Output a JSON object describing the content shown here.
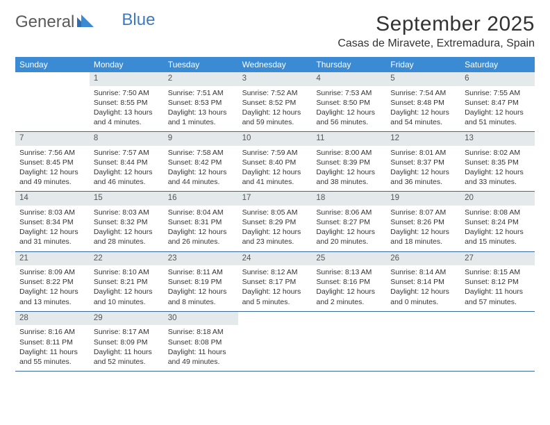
{
  "logo": {
    "text1": "General",
    "text2": "Blue"
  },
  "title": "September 2025",
  "location": "Casas de Miravete, Extremadura, Spain",
  "colors": {
    "header_bg": "#3b8bd4",
    "header_text": "#ffffff",
    "daynum_bg": "#e4e9ec",
    "week_border": "#3b6a9a",
    "logo_gray": "#5a5a5a",
    "logo_blue": "#3b7bbf"
  },
  "day_names": [
    "Sunday",
    "Monday",
    "Tuesday",
    "Wednesday",
    "Thursday",
    "Friday",
    "Saturday"
  ],
  "weeks": [
    [
      {
        "n": "",
        "empty": true
      },
      {
        "n": "1",
        "sr": "Sunrise: 7:50 AM",
        "ss": "Sunset: 8:55 PM",
        "d1": "Daylight: 13 hours",
        "d2": "and 4 minutes."
      },
      {
        "n": "2",
        "sr": "Sunrise: 7:51 AM",
        "ss": "Sunset: 8:53 PM",
        "d1": "Daylight: 13 hours",
        "d2": "and 1 minutes."
      },
      {
        "n": "3",
        "sr": "Sunrise: 7:52 AM",
        "ss": "Sunset: 8:52 PM",
        "d1": "Daylight: 12 hours",
        "d2": "and 59 minutes."
      },
      {
        "n": "4",
        "sr": "Sunrise: 7:53 AM",
        "ss": "Sunset: 8:50 PM",
        "d1": "Daylight: 12 hours",
        "d2": "and 56 minutes."
      },
      {
        "n": "5",
        "sr": "Sunrise: 7:54 AM",
        "ss": "Sunset: 8:48 PM",
        "d1": "Daylight: 12 hours",
        "d2": "and 54 minutes."
      },
      {
        "n": "6",
        "sr": "Sunrise: 7:55 AM",
        "ss": "Sunset: 8:47 PM",
        "d1": "Daylight: 12 hours",
        "d2": "and 51 minutes."
      }
    ],
    [
      {
        "n": "7",
        "sr": "Sunrise: 7:56 AM",
        "ss": "Sunset: 8:45 PM",
        "d1": "Daylight: 12 hours",
        "d2": "and 49 minutes."
      },
      {
        "n": "8",
        "sr": "Sunrise: 7:57 AM",
        "ss": "Sunset: 8:44 PM",
        "d1": "Daylight: 12 hours",
        "d2": "and 46 minutes."
      },
      {
        "n": "9",
        "sr": "Sunrise: 7:58 AM",
        "ss": "Sunset: 8:42 PM",
        "d1": "Daylight: 12 hours",
        "d2": "and 44 minutes."
      },
      {
        "n": "10",
        "sr": "Sunrise: 7:59 AM",
        "ss": "Sunset: 8:40 PM",
        "d1": "Daylight: 12 hours",
        "d2": "and 41 minutes."
      },
      {
        "n": "11",
        "sr": "Sunrise: 8:00 AM",
        "ss": "Sunset: 8:39 PM",
        "d1": "Daylight: 12 hours",
        "d2": "and 38 minutes."
      },
      {
        "n": "12",
        "sr": "Sunrise: 8:01 AM",
        "ss": "Sunset: 8:37 PM",
        "d1": "Daylight: 12 hours",
        "d2": "and 36 minutes."
      },
      {
        "n": "13",
        "sr": "Sunrise: 8:02 AM",
        "ss": "Sunset: 8:35 PM",
        "d1": "Daylight: 12 hours",
        "d2": "and 33 minutes."
      }
    ],
    [
      {
        "n": "14",
        "sr": "Sunrise: 8:03 AM",
        "ss": "Sunset: 8:34 PM",
        "d1": "Daylight: 12 hours",
        "d2": "and 31 minutes."
      },
      {
        "n": "15",
        "sr": "Sunrise: 8:03 AM",
        "ss": "Sunset: 8:32 PM",
        "d1": "Daylight: 12 hours",
        "d2": "and 28 minutes."
      },
      {
        "n": "16",
        "sr": "Sunrise: 8:04 AM",
        "ss": "Sunset: 8:31 PM",
        "d1": "Daylight: 12 hours",
        "d2": "and 26 minutes."
      },
      {
        "n": "17",
        "sr": "Sunrise: 8:05 AM",
        "ss": "Sunset: 8:29 PM",
        "d1": "Daylight: 12 hours",
        "d2": "and 23 minutes."
      },
      {
        "n": "18",
        "sr": "Sunrise: 8:06 AM",
        "ss": "Sunset: 8:27 PM",
        "d1": "Daylight: 12 hours",
        "d2": "and 20 minutes."
      },
      {
        "n": "19",
        "sr": "Sunrise: 8:07 AM",
        "ss": "Sunset: 8:26 PM",
        "d1": "Daylight: 12 hours",
        "d2": "and 18 minutes."
      },
      {
        "n": "20",
        "sr": "Sunrise: 8:08 AM",
        "ss": "Sunset: 8:24 PM",
        "d1": "Daylight: 12 hours",
        "d2": "and 15 minutes."
      }
    ],
    [
      {
        "n": "21",
        "sr": "Sunrise: 8:09 AM",
        "ss": "Sunset: 8:22 PM",
        "d1": "Daylight: 12 hours",
        "d2": "and 13 minutes."
      },
      {
        "n": "22",
        "sr": "Sunrise: 8:10 AM",
        "ss": "Sunset: 8:21 PM",
        "d1": "Daylight: 12 hours",
        "d2": "and 10 minutes."
      },
      {
        "n": "23",
        "sr": "Sunrise: 8:11 AM",
        "ss": "Sunset: 8:19 PM",
        "d1": "Daylight: 12 hours",
        "d2": "and 8 minutes."
      },
      {
        "n": "24",
        "sr": "Sunrise: 8:12 AM",
        "ss": "Sunset: 8:17 PM",
        "d1": "Daylight: 12 hours",
        "d2": "and 5 minutes."
      },
      {
        "n": "25",
        "sr": "Sunrise: 8:13 AM",
        "ss": "Sunset: 8:16 PM",
        "d1": "Daylight: 12 hours",
        "d2": "and 2 minutes."
      },
      {
        "n": "26",
        "sr": "Sunrise: 8:14 AM",
        "ss": "Sunset: 8:14 PM",
        "d1": "Daylight: 12 hours",
        "d2": "and 0 minutes."
      },
      {
        "n": "27",
        "sr": "Sunrise: 8:15 AM",
        "ss": "Sunset: 8:12 PM",
        "d1": "Daylight: 11 hours",
        "d2": "and 57 minutes."
      }
    ],
    [
      {
        "n": "28",
        "sr": "Sunrise: 8:16 AM",
        "ss": "Sunset: 8:11 PM",
        "d1": "Daylight: 11 hours",
        "d2": "and 55 minutes."
      },
      {
        "n": "29",
        "sr": "Sunrise: 8:17 AM",
        "ss": "Sunset: 8:09 PM",
        "d1": "Daylight: 11 hours",
        "d2": "and 52 minutes."
      },
      {
        "n": "30",
        "sr": "Sunrise: 8:18 AM",
        "ss": "Sunset: 8:08 PM",
        "d1": "Daylight: 11 hours",
        "d2": "and 49 minutes."
      },
      {
        "n": "",
        "empty": true
      },
      {
        "n": "",
        "empty": true
      },
      {
        "n": "",
        "empty": true
      },
      {
        "n": "",
        "empty": true
      }
    ]
  ]
}
